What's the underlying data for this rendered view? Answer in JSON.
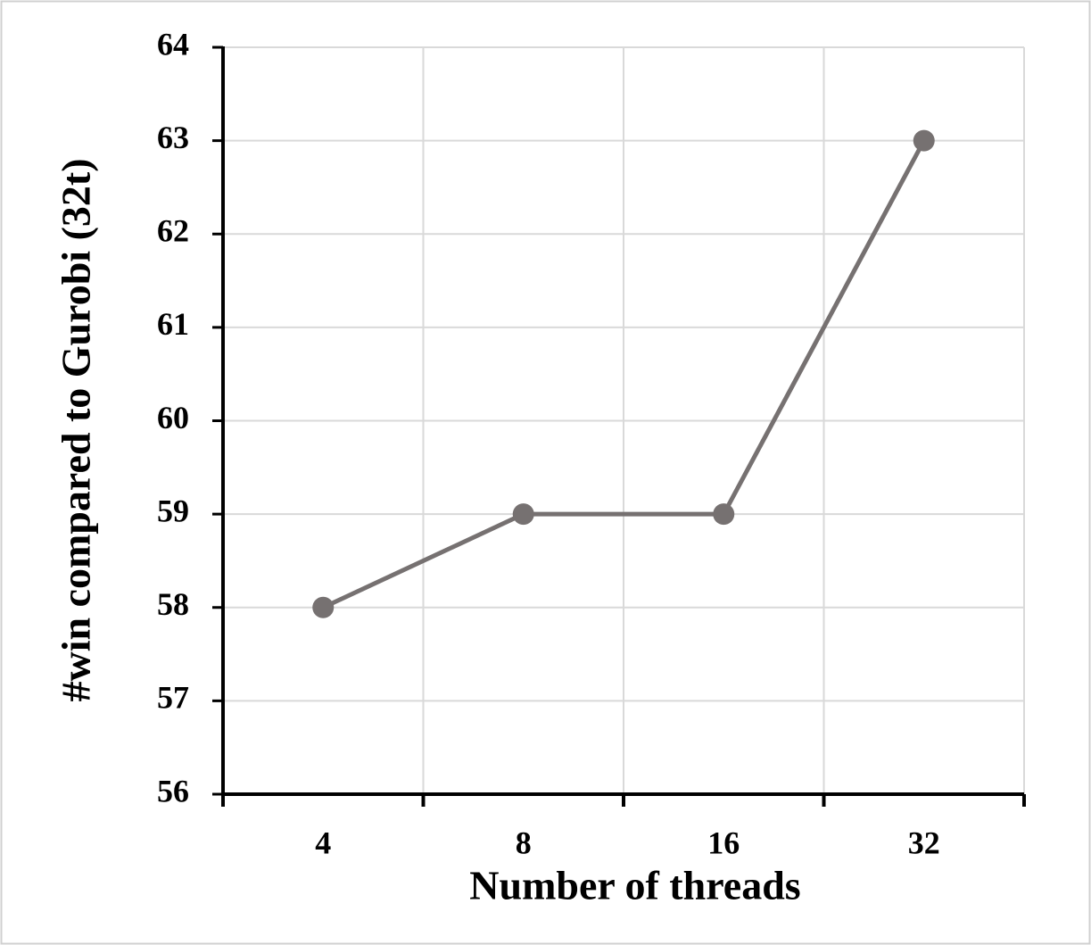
{
  "chart_data": {
    "type": "line",
    "x_label": "Number of threads",
    "y_label": "#win compared to Gurobi (32t)",
    "categories": [
      "4",
      "8",
      "16",
      "32"
    ],
    "values": [
      58,
      59,
      59,
      63
    ],
    "color": "#767171",
    "ylim": [
      56,
      64
    ],
    "yticks": [
      56,
      57,
      58,
      59,
      60,
      61,
      62,
      63,
      64
    ],
    "grid": true
  }
}
